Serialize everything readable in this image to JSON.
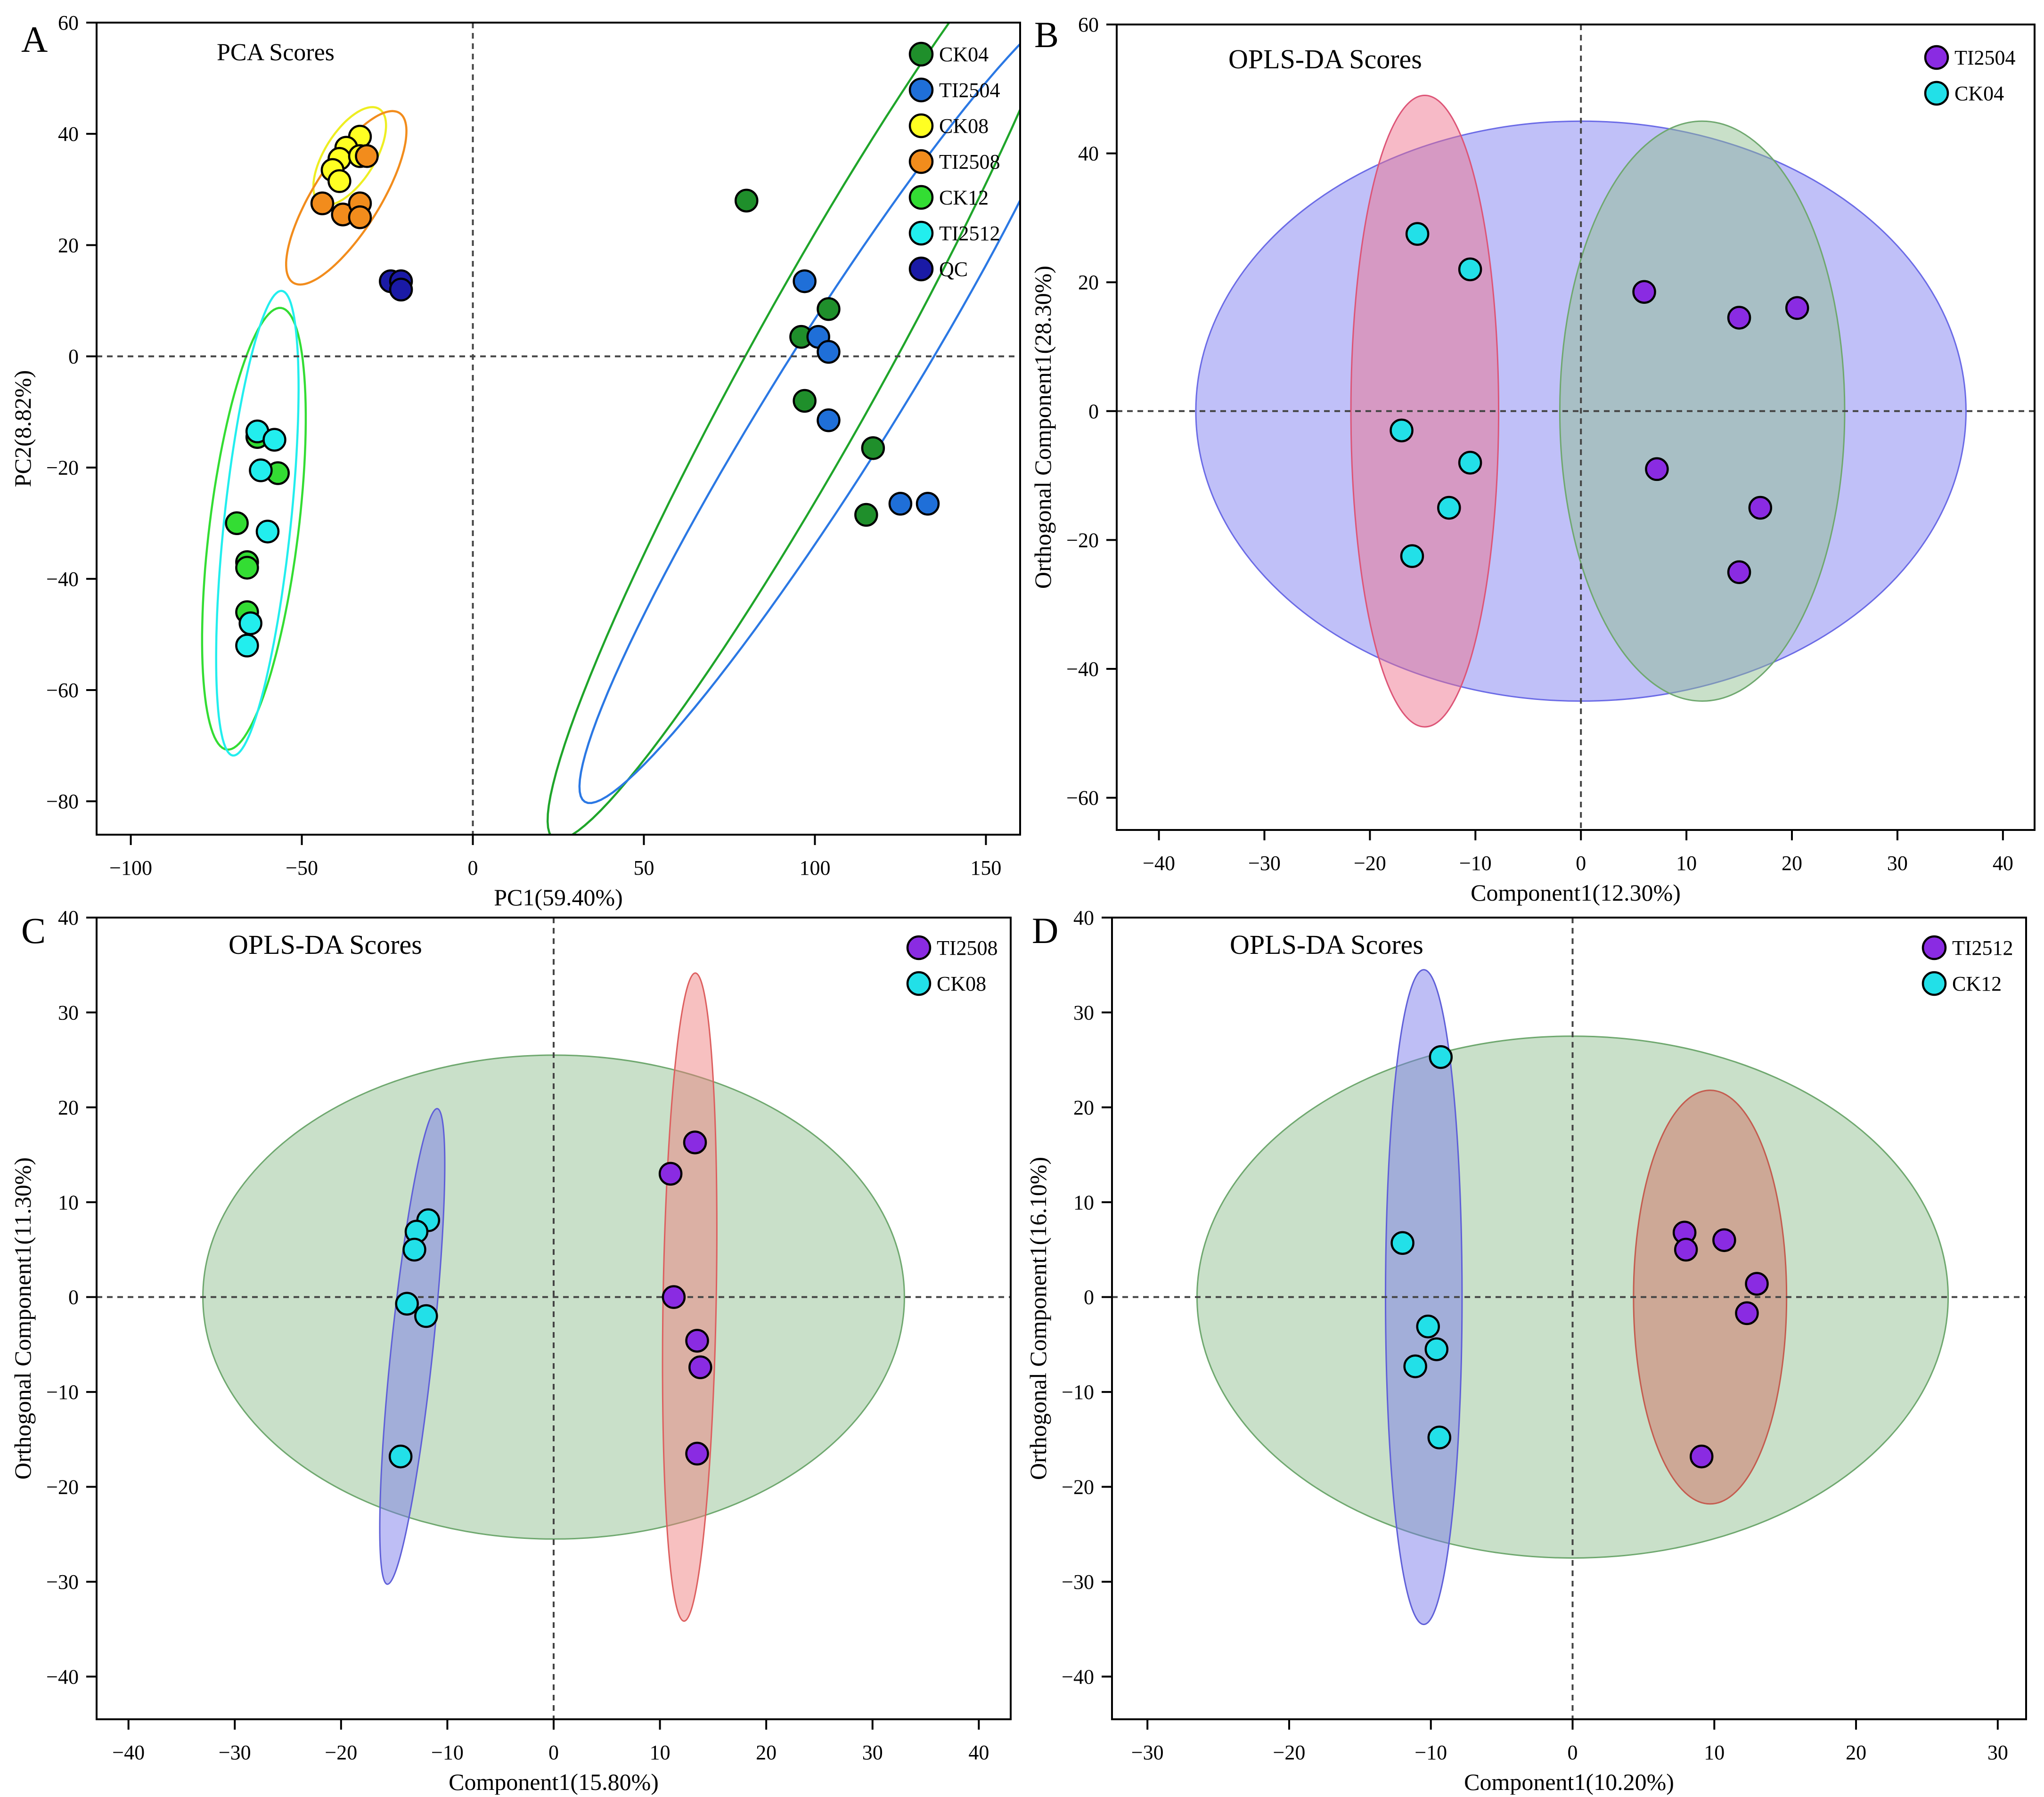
{
  "figure": {
    "panels": [
      {
        "id": "A",
        "letter": "A",
        "title": "PCA Scores",
        "xlabel": "PC1(59.40%)",
        "ylabel": "PC2(8.82%)"
      },
      {
        "id": "B",
        "letter": "B",
        "title": "OPLS-DA Scores",
        "xlabel": "Component1(12.30%)",
        "ylabel": "Orthogonal Component1(28.30%)"
      },
      {
        "id": "C",
        "letter": "C",
        "title": "OPLS-DA Scores",
        "xlabel": "Component1(15.80%)",
        "ylabel": "Orthogonal Component1(11.30%)"
      },
      {
        "id": "D",
        "letter": "D",
        "title": "OPLS-DA Scores",
        "xlabel": "Component1(10.20%)",
        "ylabel": "Orthogonal Component1(16.10%)"
      }
    ]
  },
  "chart_data": [
    {
      "panel": "A",
      "type": "scatter",
      "title": "PCA Scores",
      "xlabel": "PC1(59.40%)",
      "ylabel": "PC2(8.82%)",
      "xlim": [
        -110,
        160
      ],
      "ylim": [
        -86,
        60
      ],
      "xticks": [
        -100,
        -50,
        0,
        50,
        100,
        150
      ],
      "yticks": [
        -80,
        -60,
        -40,
        -20,
        0,
        20,
        40,
        60
      ],
      "grid": false,
      "reference_lines": {
        "x": 0,
        "y": 0,
        "style": "dashed"
      },
      "legend_position": "top-right",
      "series": [
        {
          "name": "CK04",
          "color": "#1f8f2b",
          "points": [
            [
              80,
              28
            ],
            [
              104,
              8.5
            ],
            [
              96,
              3.5
            ],
            [
              97,
              -8
            ],
            [
              117,
              -16.5
            ],
            [
              115,
              -28.5
            ]
          ],
          "ellipse": {
            "cx": 101,
            "cy": -1,
            "rx": 98,
            "ry": 12,
            "angle": 61,
            "stroke": "#1fa52a",
            "fill": "none"
          }
        },
        {
          "name": "TI2504",
          "color": "#1f6fd8",
          "points": [
            [
              97,
              13.5
            ],
            [
              101,
              3.5
            ],
            [
              104,
              0.8
            ],
            [
              104,
              -11.5
            ],
            [
              125,
              -26.5
            ],
            [
              133,
              -26.5
            ]
          ],
          "ellipse": {
            "cx": 106,
            "cy": -8,
            "rx": 85,
            "ry": 11,
            "angle": 58,
            "stroke": "#2b78e4",
            "fill": "none"
          }
        },
        {
          "name": "CK08",
          "color": "#ffff22",
          "points": [
            [
              -33,
              39.5
            ],
            [
              -37,
              37.5
            ],
            [
              -39,
              35.5
            ],
            [
              -41,
              33.5
            ],
            [
              -39,
              31.5
            ],
            [
              -33,
              36
            ]
          ],
          "ellipse": {
            "cx": -36,
            "cy": 36,
            "rx": 10,
            "ry": 4.5,
            "angle": 58,
            "stroke": "#eeee22",
            "fill": "none"
          }
        },
        {
          "name": "TI2508",
          "color": "#f28c1c",
          "points": [
            [
              -44,
              27.5
            ],
            [
              -38,
              25.5
            ],
            [
              -33,
              27.5
            ],
            [
              -33,
              25
            ],
            [
              -31,
              36
            ]
          ],
          "ellipse": {
            "cx": -37,
            "cy": 28.5,
            "rx": 18,
            "ry": 6,
            "angle": 58,
            "stroke": "#f28c1c",
            "fill": "none"
          }
        },
        {
          "name": "CK12",
          "color": "#33dd33",
          "points": [
            [
              -63,
              -14.5
            ],
            [
              -57,
              -21
            ],
            [
              -69,
              -30
            ],
            [
              -66,
              -37
            ],
            [
              -66,
              -38
            ],
            [
              -66,
              -46
            ]
          ],
          "ellipse": {
            "cx": -64,
            "cy": -31,
            "rx": 40,
            "ry": 8,
            "angle": 83,
            "stroke": "#33dd33",
            "fill": "none"
          }
        },
        {
          "name": "TI2512",
          "color": "#22eeee",
          "points": [
            [
              -63,
              -13.5
            ],
            [
              -58,
              -15
            ],
            [
              -62,
              -20.5
            ],
            [
              -60,
              -31.5
            ],
            [
              -65,
              -48
            ],
            [
              -66,
              -52
            ]
          ],
          "ellipse": {
            "cx": -63,
            "cy": -30,
            "rx": 42,
            "ry": 6,
            "angle": 84,
            "stroke": "#22eeee",
            "fill": "none"
          }
        },
        {
          "name": "QC",
          "color": "#1a1aa6",
          "points": [
            [
              -24,
              13.5
            ],
            [
              -21,
              13.5
            ],
            [
              -21,
              12
            ]
          ],
          "ellipse": null
        }
      ]
    },
    {
      "panel": "B",
      "type": "scatter",
      "title": "OPLS-DA Scores",
      "xlabel": "Component1(12.30%)",
      "ylabel": "Orthogonal Component1(28.30%)",
      "xlim": [
        -44,
        43
      ],
      "ylim": [
        -65,
        60
      ],
      "xticks": [
        -40,
        -30,
        -20,
        -10,
        0,
        10,
        20,
        30,
        40
      ],
      "yticks": [
        -60,
        -40,
        -20,
        0,
        20,
        40,
        60
      ],
      "grid": false,
      "reference_lines": {
        "x": 0,
        "y": 0,
        "style": "dashed"
      },
      "legend_position": "top-right",
      "regions": [
        {
          "cx": 0,
          "cy": 0,
          "rx": 36.5,
          "ry": 45,
          "fill": "#7b7bf0",
          "stroke": "#6b6be6"
        },
        {
          "cx": 11.5,
          "cy": 0,
          "rx": 13.5,
          "ry": 45,
          "fill": "#8fbf8f",
          "stroke": "#6fa86f"
        },
        {
          "cx": -14.8,
          "cy": 0,
          "rx": 7,
          "ry": 49,
          "fill": "#ee6e8a",
          "stroke": "#dd5577"
        }
      ],
      "series": [
        {
          "name": "TI2504",
          "color": "#8a2be2",
          "points": [
            [
              6,
              18.5
            ],
            [
              15,
              14.5
            ],
            [
              20.5,
              16
            ],
            [
              7.2,
              -9
            ],
            [
              17,
              -15
            ],
            [
              15,
              -25
            ]
          ]
        },
        {
          "name": "CK04",
          "color": "#22e0e8",
          "points": [
            [
              -15.5,
              27.5
            ],
            [
              -10.5,
              22
            ],
            [
              -17,
              -3
            ],
            [
              -10.5,
              -8
            ],
            [
              -12.5,
              -15
            ],
            [
              -16,
              -22.5
            ]
          ]
        }
      ]
    },
    {
      "panel": "C",
      "type": "scatter",
      "title": "OPLS-DA Scores",
      "xlabel": "Component1(15.80%)",
      "ylabel": "Orthogonal Component1(11.30%)",
      "xlim": [
        -43,
        43
      ],
      "ylim": [
        -44.5,
        40
      ],
      "xticks": [
        -40,
        -30,
        -20,
        -10,
        0,
        10,
        20,
        30,
        40
      ],
      "yticks": [
        -40,
        -30,
        -20,
        -10,
        0,
        10,
        20,
        30,
        40
      ],
      "grid": false,
      "reference_lines": {
        "x": 0,
        "y": 0,
        "style": "dashed"
      },
      "legend_position": "top-right",
      "regions": [
        {
          "cx": 0,
          "cy": 0,
          "rx": 33,
          "ry": 25.5,
          "fill": "#8fbf8f",
          "stroke": "#6fa86f"
        },
        {
          "cx": -13.3,
          "cy": -5.2,
          "rx": 22.5,
          "ry": 2.2,
          "angle": 84,
          "fill": "#7777ea",
          "stroke": "#5f5fd8"
        },
        {
          "cx": 12.8,
          "cy": 0,
          "rx": 30.5,
          "ry": 2.8,
          "angle": 89,
          "fill": "#ee7c7c",
          "stroke": "#dd5f5f"
        }
      ],
      "series": [
        {
          "name": "TI2508",
          "color": "#8a2be2",
          "points": [
            [
              13.3,
              16.3
            ],
            [
              11,
              13
            ],
            [
              11.3,
              0
            ],
            [
              13.5,
              -4.6
            ],
            [
              13.8,
              -7.4
            ],
            [
              13.5,
              -16.5
            ]
          ]
        },
        {
          "name": "CK08",
          "color": "#22e0e8",
          "points": [
            [
              -11.8,
              8.1
            ],
            [
              -12.9,
              6.9
            ],
            [
              -13.1,
              5
            ],
            [
              -13.8,
              -0.7
            ],
            [
              -12,
              -2
            ],
            [
              -14.4,
              -16.8
            ]
          ]
        }
      ]
    },
    {
      "panel": "D",
      "type": "scatter",
      "title": "OPLS-DA Scores",
      "xlabel": "Component1(10.20%)",
      "ylabel": "Orthogonal Component1(16.10%)",
      "xlim": [
        -32.5,
        32
      ],
      "ylim": [
        -44.5,
        40
      ],
      "xticks": [
        -30,
        -20,
        -10,
        0,
        10,
        20,
        30
      ],
      "yticks": [
        -40,
        -30,
        -20,
        -10,
        0,
        10,
        20,
        30,
        40
      ],
      "grid": false,
      "reference_lines": {
        "x": 0,
        "y": 0,
        "style": "dashed"
      },
      "legend_position": "top-right",
      "regions": [
        {
          "cx": 0,
          "cy": 0,
          "rx": 26.5,
          "ry": 27.5,
          "fill": "#8fbf8f",
          "stroke": "#6fa86f"
        },
        {
          "cx": -10.5,
          "cy": 0,
          "rx": 2.7,
          "ry": 34.5,
          "fill": "#7777ea",
          "stroke": "#5f5fd8"
        },
        {
          "cx": 9.7,
          "cy": 0,
          "rx": 5.4,
          "ry": 21.8,
          "fill": "#d26b5e",
          "stroke": "#c45c4f"
        }
      ],
      "series": [
        {
          "name": "TI2512",
          "color": "#8a2be2",
          "points": [
            [
              7.9,
              6.8
            ],
            [
              10.7,
              6
            ],
            [
              8,
              5
            ],
            [
              13,
              1.4
            ],
            [
              12.3,
              -1.7
            ],
            [
              9.1,
              -16.8
            ]
          ]
        },
        {
          "name": "CK12",
          "color": "#22e0e8",
          "points": [
            [
              -9.3,
              25.3
            ],
            [
              -12,
              5.7
            ],
            [
              -10.2,
              -3.1
            ],
            [
              -11.1,
              -7.3
            ],
            [
              -9.6,
              -5.5
            ],
            [
              -9.4,
              -14.8
            ]
          ]
        }
      ]
    }
  ]
}
